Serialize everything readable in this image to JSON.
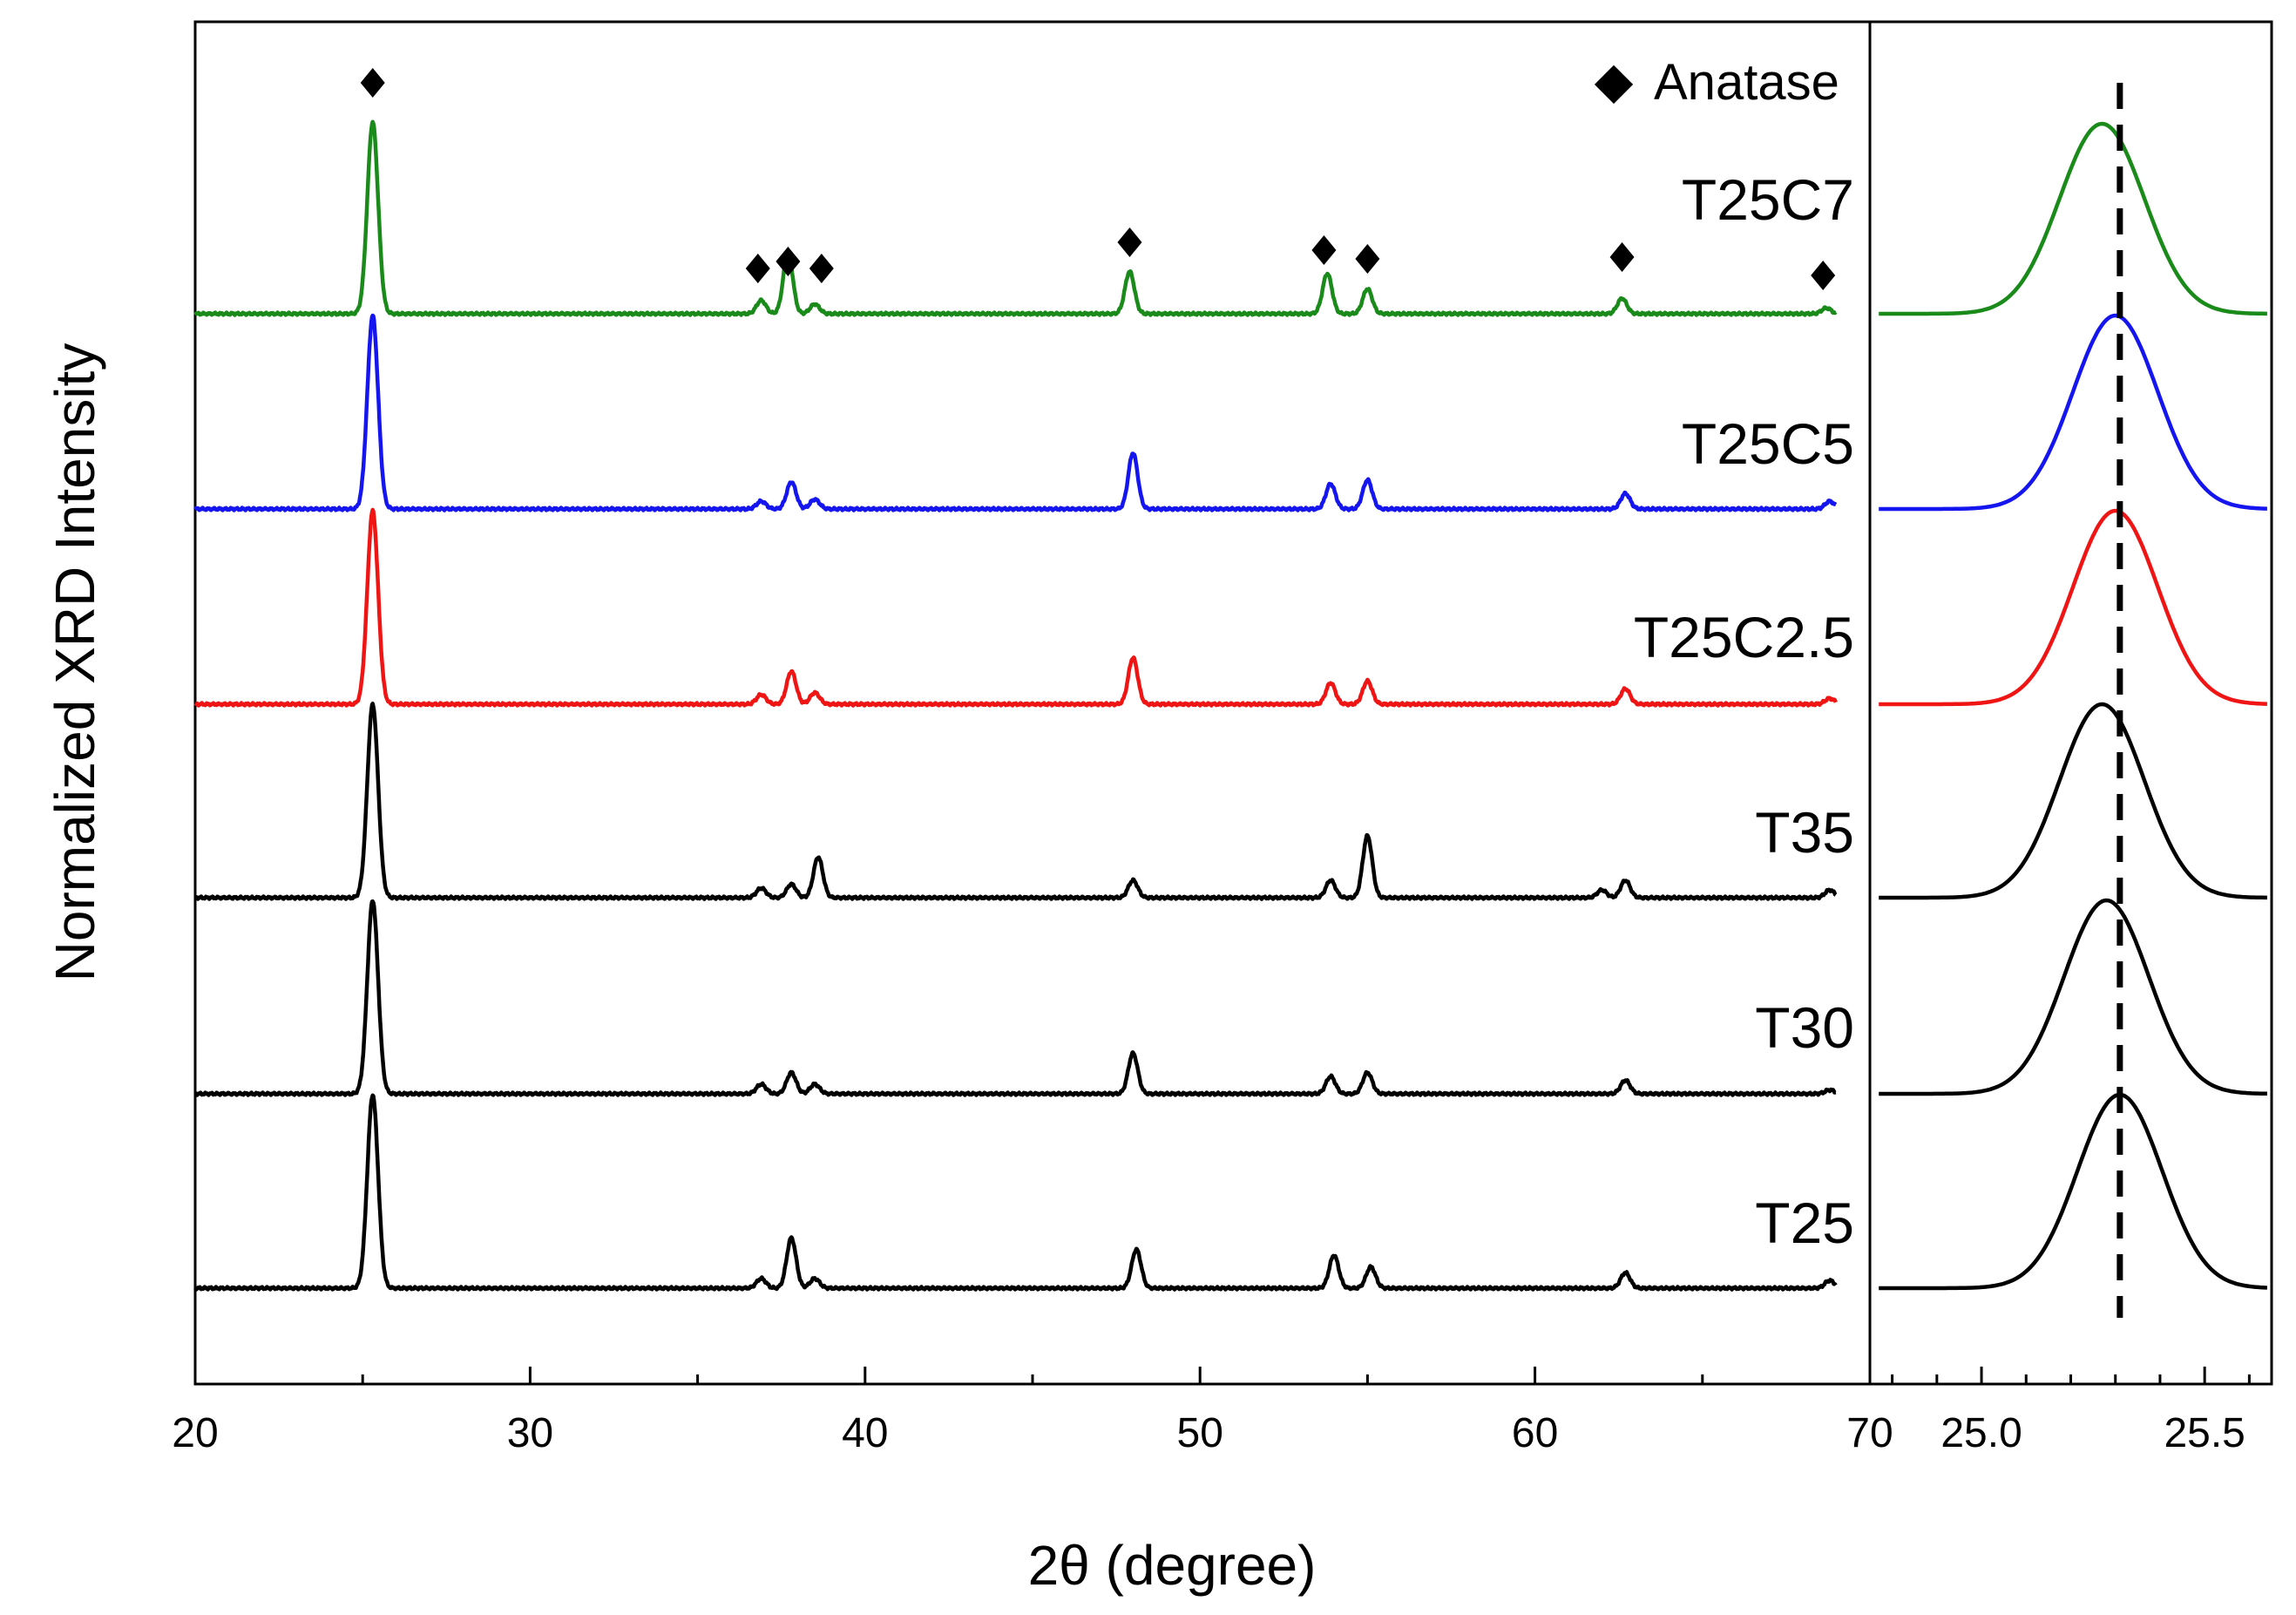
{
  "chart_data": [
    {
      "type": "line",
      "panel": "main",
      "title": "",
      "xlabel": "2θ (degree)",
      "ylabel": "Normalized XRD Intensity",
      "xlim": [
        20,
        70
      ],
      "x_ticks": [
        20,
        30,
        40,
        50,
        60,
        70
      ],
      "x_tick_labels": [
        "20",
        "30",
        "40",
        "50",
        "60",
        "70"
      ],
      "y_ticks_shown": false,
      "series": [
        {
          "name": "T25C7",
          "color": "#1a8a1a",
          "peaks": [
            [
              25.3,
              1.0
            ],
            [
              36.9,
              0.07
            ],
            [
              37.7,
              0.32
            ],
            [
              38.5,
              0.05
            ],
            [
              47.9,
              0.22
            ],
            [
              53.8,
              0.21
            ],
            [
              55.0,
              0.13
            ],
            [
              62.6,
              0.08
            ],
            [
              68.7,
              0.03
            ]
          ]
        },
        {
          "name": "T25C5",
          "color": "#1515f0",
          "peaks": [
            [
              25.3,
              1.0
            ],
            [
              36.9,
              0.04
            ],
            [
              37.8,
              0.14
            ],
            [
              38.5,
              0.05
            ],
            [
              48.0,
              0.29
            ],
            [
              53.9,
              0.13
            ],
            [
              55.0,
              0.15
            ],
            [
              62.7,
              0.08
            ],
            [
              68.8,
              0.04
            ]
          ]
        },
        {
          "name": "T25C2.5",
          "color": "#f01515",
          "peaks": [
            [
              25.3,
              1.0
            ],
            [
              36.9,
              0.05
            ],
            [
              37.8,
              0.17
            ],
            [
              38.5,
              0.06
            ],
            [
              48.0,
              0.24
            ],
            [
              53.9,
              0.11
            ],
            [
              55.0,
              0.12
            ],
            [
              62.7,
              0.08
            ],
            [
              68.8,
              0.03
            ]
          ]
        },
        {
          "name": "T35",
          "color": "#000000",
          "peaks": [
            [
              25.3,
              1.0
            ],
            [
              36.9,
              0.05
            ],
            [
              37.8,
              0.07
            ],
            [
              38.6,
              0.21
            ],
            [
              48.0,
              0.09
            ],
            [
              53.9,
              0.09
            ],
            [
              55.0,
              0.32
            ],
            [
              62.0,
              0.04
            ],
            [
              62.7,
              0.09
            ],
            [
              68.8,
              0.04
            ]
          ]
        },
        {
          "name": "T30",
          "color": "#000000",
          "peaks": [
            [
              25.3,
              1.0
            ],
            [
              36.9,
              0.05
            ],
            [
              37.8,
              0.11
            ],
            [
              38.5,
              0.05
            ],
            [
              48.0,
              0.21
            ],
            [
              53.9,
              0.09
            ],
            [
              55.0,
              0.11
            ],
            [
              62.7,
              0.07
            ],
            [
              68.8,
              0.02
            ]
          ]
        },
        {
          "name": "T25",
          "color": "#000000",
          "peaks": [
            [
              25.3,
              1.0
            ],
            [
              36.9,
              0.05
            ],
            [
              37.8,
              0.26
            ],
            [
              38.5,
              0.05
            ],
            [
              48.1,
              0.2
            ],
            [
              54.0,
              0.17
            ],
            [
              55.1,
              0.11
            ],
            [
              62.7,
              0.08
            ],
            [
              68.8,
              0.04
            ]
          ]
        }
      ],
      "annotations": {
        "marker": "◆",
        "legend_label": "Anatase",
        "marker_positions_2theta": [
          25.3,
          36.8,
          37.7,
          38.7,
          47.9,
          53.7,
          55.0,
          62.6,
          68.6
        ]
      }
    },
    {
      "type": "line",
      "panel": "inset-zoom",
      "xlim": [
        24.75,
        25.65
      ],
      "x_ticks": [
        25.0,
        25.5
      ],
      "x_tick_labels": [
        "25.0",
        "25.5"
      ],
      "reference_line_2theta": 25.31,
      "series": [
        {
          "name": "T25C7",
          "color": "#1a8a1a",
          "center": 25.27
        },
        {
          "name": "T25C5",
          "color": "#1515f0",
          "center": 25.3
        },
        {
          "name": "T25C2.5",
          "color": "#f01515",
          "center": 25.3
        },
        {
          "name": "T35",
          "color": "#000000",
          "center": 25.27
        },
        {
          "name": "T30",
          "color": "#000000",
          "center": 25.28
        },
        {
          "name": "T25",
          "color": "#000000",
          "center": 25.31
        }
      ]
    }
  ]
}
